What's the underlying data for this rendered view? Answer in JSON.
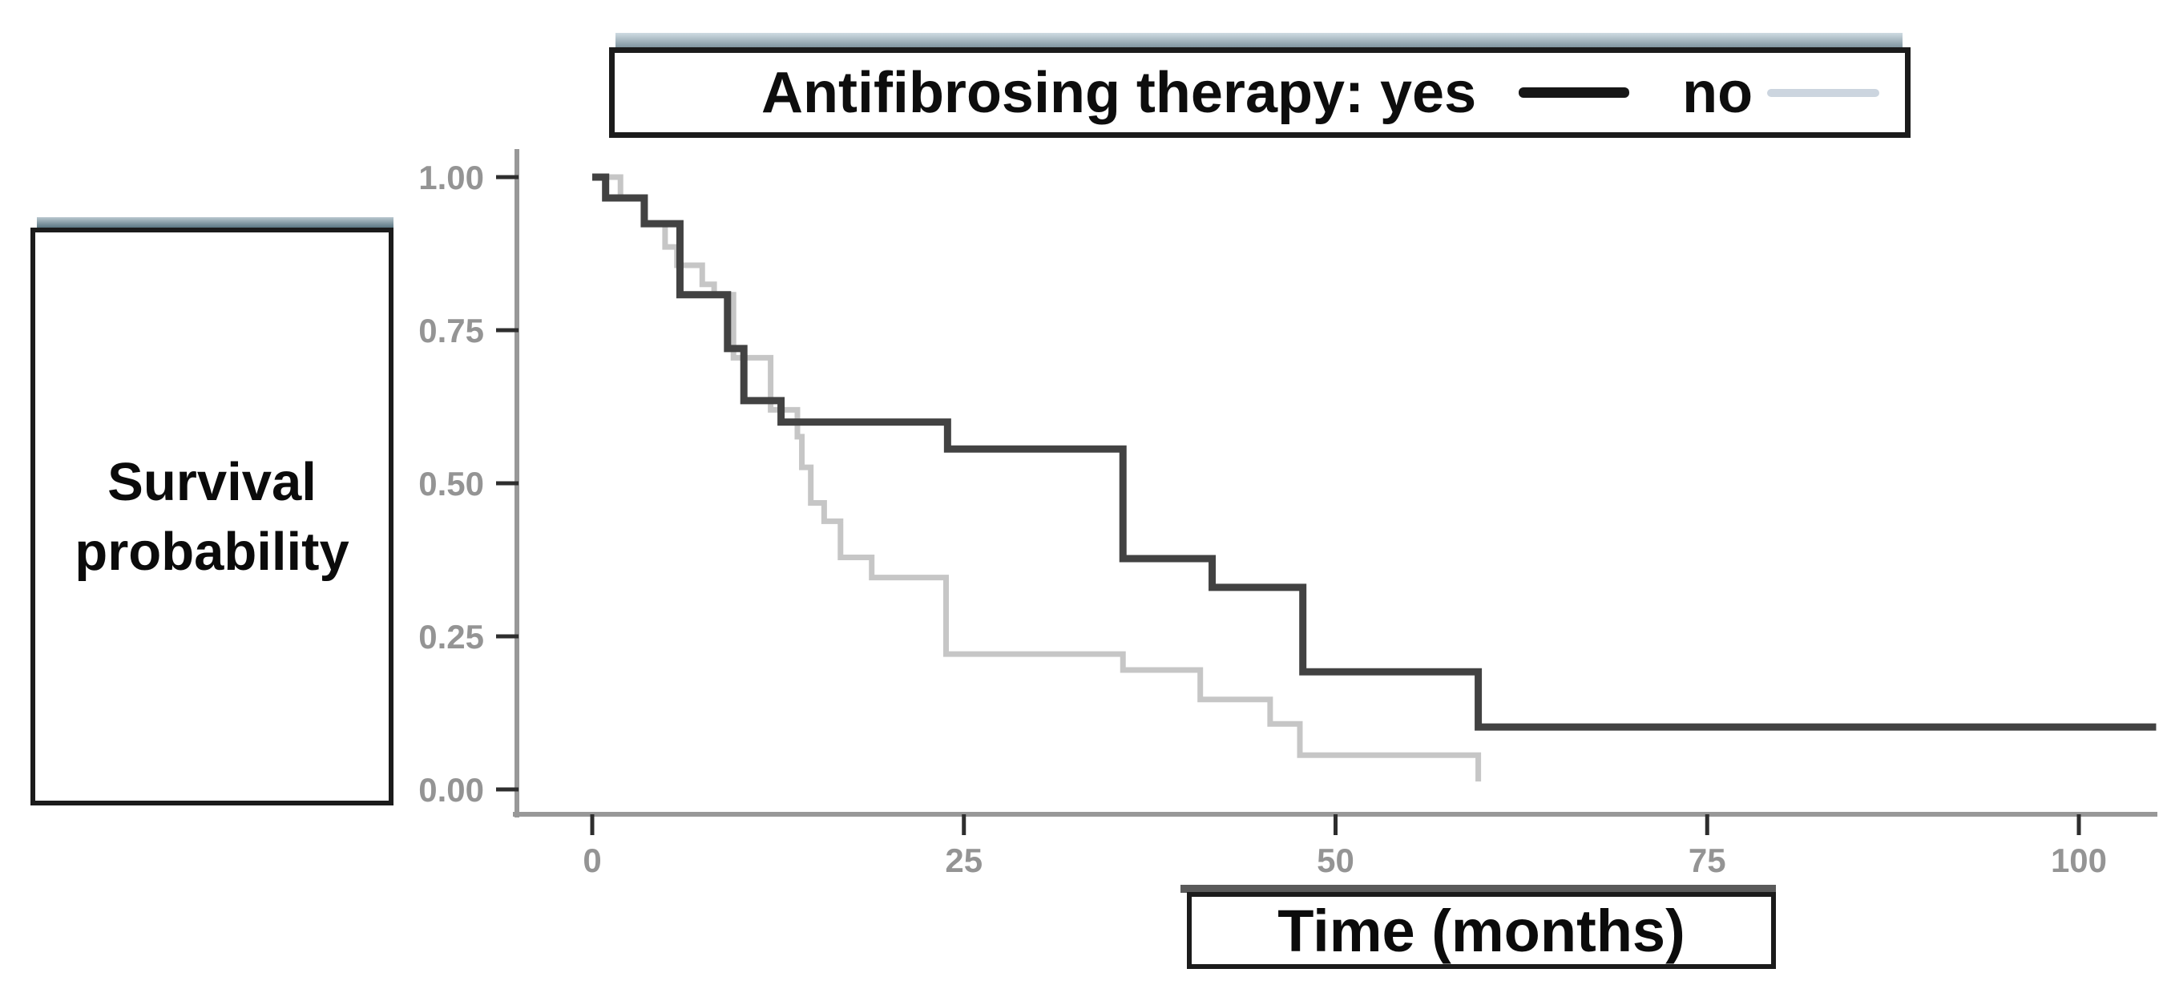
{
  "legend": {
    "prefix": "Antifibrosing therapy:",
    "entries": [
      {
        "label": "yes",
        "color": "#161616"
      },
      {
        "label": "no",
        "color": "#ccd5df"
      }
    ],
    "title_with_first": "Antifibrosing therapy: yes"
  },
  "ylabel_box": {
    "line1": "Survival",
    "line2": "probability"
  },
  "xlabel_box": {
    "label": "Time (months)"
  },
  "colors": {
    "curve_yes": "#424242",
    "curve_no": "#c6c6c6",
    "axis": "#989898",
    "tick": "#2e2e2e",
    "tick_text": "#949494"
  },
  "chart_data": {
    "type": "line",
    "subtype": "kaplan-meier-step",
    "title": "Antifibrosing therapy: yes vs no",
    "xlabel": "Time (months)",
    "ylabel": "Survival probability",
    "xlim": [
      -5,
      105.5
    ],
    "ylim": [
      0,
      1.0
    ],
    "grid": false,
    "legend_position": "top",
    "x_ticks": [
      {
        "v": 0,
        "label": "0"
      },
      {
        "v": 25,
        "label": "25"
      },
      {
        "v": 50,
        "label": "50"
      },
      {
        "v": 75,
        "label": "75"
      },
      {
        "v": 100,
        "label": "100"
      }
    ],
    "y_ticks": [
      {
        "v": 1.0,
        "label": "1.00"
      },
      {
        "v": 0.75,
        "label": "0.75"
      },
      {
        "v": 0.5,
        "label": "0.50"
      },
      {
        "v": 0.25,
        "label": "0.25"
      },
      {
        "v": 0.0,
        "label": "0.00"
      }
    ],
    "series": [
      {
        "name": "no",
        "color": "#c6c6c6",
        "stroke_width": 7,
        "end_t": 59.6,
        "steps": [
          [
            0,
            1.0
          ],
          [
            1.9,
            0.967
          ],
          [
            3.5,
            0.924
          ],
          [
            4.9,
            0.886
          ],
          [
            5.7,
            0.856
          ],
          [
            7.4,
            0.825
          ],
          [
            8.2,
            0.808
          ],
          [
            9.5,
            0.705
          ],
          [
            12.0,
            0.62
          ],
          [
            13.8,
            0.576
          ],
          [
            14.1,
            0.526
          ],
          [
            14.7,
            0.468
          ],
          [
            15.6,
            0.438
          ],
          [
            16.7,
            0.379
          ],
          [
            18.8,
            0.346
          ],
          [
            23.8,
            0.221
          ],
          [
            35.7,
            0.195
          ],
          [
            40.9,
            0.147
          ],
          [
            45.6,
            0.107
          ],
          [
            47.6,
            0.056
          ],
          [
            59.6,
            0.013
          ]
        ]
      },
      {
        "name": "yes",
        "color": "#424242",
        "stroke_width": 9,
        "end_t": 105.2,
        "steps": [
          [
            0,
            1.0
          ],
          [
            0.9,
            0.966
          ],
          [
            3.5,
            0.924
          ],
          [
            5.9,
            0.808
          ],
          [
            9.1,
            0.72
          ],
          [
            10.2,
            0.635
          ],
          [
            12.7,
            0.6
          ],
          [
            23.9,
            0.556
          ],
          [
            35.7,
            0.377
          ],
          [
            41.7,
            0.33
          ],
          [
            47.8,
            0.192
          ],
          [
            59.6,
            0.102
          ]
        ]
      }
    ]
  }
}
